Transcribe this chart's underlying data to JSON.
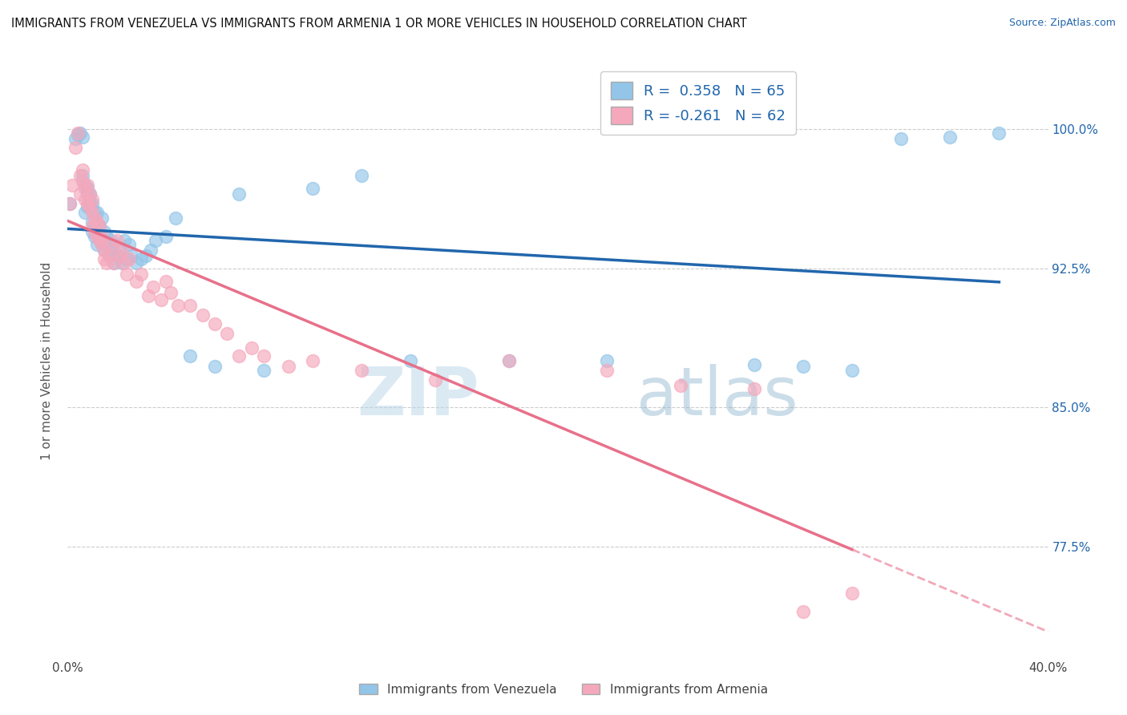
{
  "title": "IMMIGRANTS FROM VENEZUELA VS IMMIGRANTS FROM ARMENIA 1 OR MORE VEHICLES IN HOUSEHOLD CORRELATION CHART",
  "source": "Source: ZipAtlas.com",
  "ylabel": "1 or more Vehicles in Household",
  "ytick_labels": [
    "100.0%",
    "92.5%",
    "85.0%",
    "77.5%"
  ],
  "ytick_values": [
    1.0,
    0.925,
    0.85,
    0.775
  ],
  "xlim": [
    0.0,
    0.4
  ],
  "ylim": [
    0.715,
    1.035
  ],
  "R_venezuela": 0.358,
  "N_venezuela": 65,
  "R_armenia": -0.261,
  "N_armenia": 62,
  "color_venezuela": "#92C5E8",
  "color_armenia": "#F5A8BC",
  "line_color_venezuela": "#2166AC",
  "line_color_armenia": "#E8708A",
  "background_color": "#ffffff",
  "watermark_zip": "ZIP",
  "watermark_atlas": "atlas",
  "venezuela_x": [
    0.001,
    0.003,
    0.004,
    0.005,
    0.006,
    0.006,
    0.007,
    0.007,
    0.008,
    0.008,
    0.008,
    0.009,
    0.009,
    0.009,
    0.01,
    0.01,
    0.01,
    0.011,
    0.011,
    0.011,
    0.012,
    0.012,
    0.012,
    0.013,
    0.013,
    0.014,
    0.014,
    0.015,
    0.015,
    0.015,
    0.016,
    0.016,
    0.017,
    0.018,
    0.018,
    0.019,
    0.02,
    0.021,
    0.022,
    0.023,
    0.024,
    0.025,
    0.026,
    0.028,
    0.03,
    0.032,
    0.034,
    0.036,
    0.04,
    0.044,
    0.05,
    0.06,
    0.07,
    0.08,
    0.1,
    0.12,
    0.14,
    0.18,
    0.22,
    0.28,
    0.3,
    0.32,
    0.34,
    0.36,
    0.38
  ],
  "venezuela_y": [
    0.96,
    0.995,
    0.997,
    0.998,
    0.996,
    0.975,
    0.97,
    0.955,
    0.968,
    0.965,
    0.958,
    0.958,
    0.96,
    0.965,
    0.945,
    0.95,
    0.96,
    0.942,
    0.955,
    0.948,
    0.938,
    0.945,
    0.955,
    0.948,
    0.942,
    0.952,
    0.938,
    0.935,
    0.94,
    0.945,
    0.938,
    0.942,
    0.932,
    0.936,
    0.94,
    0.928,
    0.932,
    0.935,
    0.928,
    0.94,
    0.93,
    0.938,
    0.932,
    0.928,
    0.93,
    0.932,
    0.935,
    0.94,
    0.942,
    0.952,
    0.878,
    0.872,
    0.965,
    0.87,
    0.968,
    0.975,
    0.875,
    0.875,
    0.875,
    0.873,
    0.872,
    0.87,
    0.995,
    0.996,
    0.998
  ],
  "armenia_x": [
    0.001,
    0.002,
    0.003,
    0.004,
    0.005,
    0.005,
    0.006,
    0.006,
    0.007,
    0.007,
    0.008,
    0.008,
    0.009,
    0.009,
    0.01,
    0.01,
    0.01,
    0.011,
    0.011,
    0.012,
    0.012,
    0.013,
    0.013,
    0.014,
    0.014,
    0.015,
    0.015,
    0.016,
    0.017,
    0.018,
    0.019,
    0.02,
    0.021,
    0.022,
    0.023,
    0.024,
    0.025,
    0.028,
    0.03,
    0.033,
    0.035,
    0.038,
    0.04,
    0.042,
    0.045,
    0.05,
    0.055,
    0.06,
    0.065,
    0.07,
    0.075,
    0.08,
    0.09,
    0.1,
    0.12,
    0.15,
    0.18,
    0.22,
    0.25,
    0.28,
    0.3,
    0.32
  ],
  "armenia_y": [
    0.96,
    0.97,
    0.99,
    0.998,
    0.975,
    0.965,
    0.972,
    0.978,
    0.968,
    0.962,
    0.97,
    0.96,
    0.965,
    0.958,
    0.955,
    0.962,
    0.948,
    0.952,
    0.945,
    0.942,
    0.95,
    0.94,
    0.948,
    0.938,
    0.942,
    0.935,
    0.93,
    0.928,
    0.932,
    0.938,
    0.928,
    0.94,
    0.932,
    0.935,
    0.928,
    0.922,
    0.93,
    0.918,
    0.922,
    0.91,
    0.915,
    0.908,
    0.918,
    0.912,
    0.905,
    0.905,
    0.9,
    0.895,
    0.89,
    0.878,
    0.882,
    0.878,
    0.872,
    0.875,
    0.87,
    0.865,
    0.875,
    0.87,
    0.862,
    0.86,
    0.74,
    0.75
  ]
}
